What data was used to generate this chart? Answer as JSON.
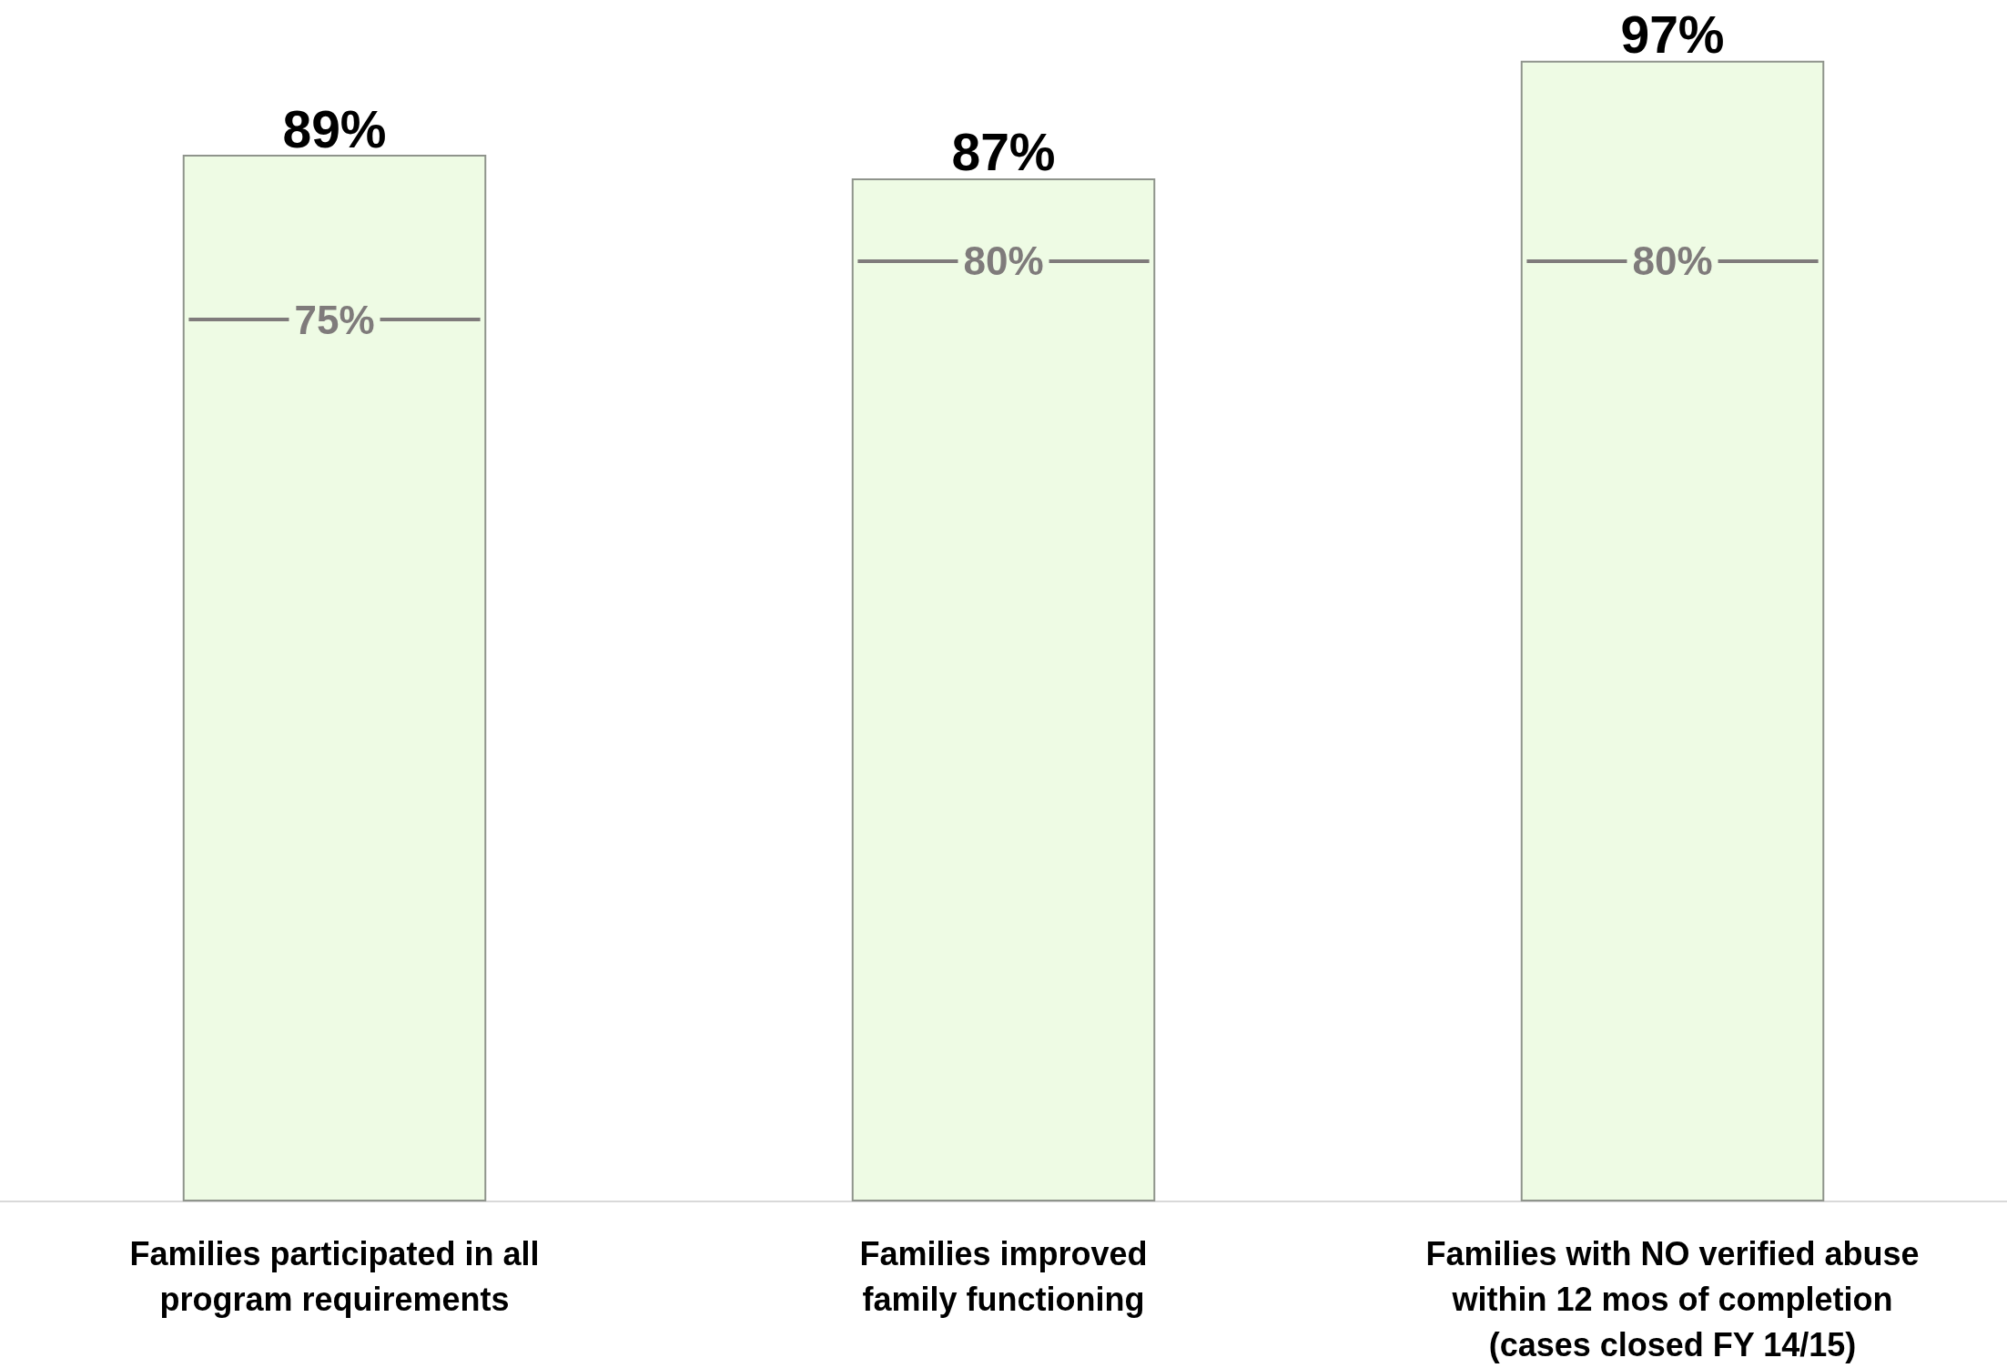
{
  "chart_data": {
    "type": "bar",
    "categories": [
      "Families participated in all\nprogram requirements",
      "Families improved\nfamily functioning",
      "Families with NO verified abuse\nwithin 12 mos of completion\n(cases closed FY 14/15)"
    ],
    "series": [
      {
        "type": "bar",
        "color": "#eefbe4",
        "values": [
          89,
          87,
          97
        ],
        "value_labels": [
          "89%",
          "87%",
          "97%"
        ]
      }
    ],
    "ref_lines": [
      {
        "axis": "y",
        "value": 75,
        "label": "75%",
        "color": "#7f7b7b"
      },
      {
        "axis": "y",
        "value": 80,
        "label": "80%",
        "color": "#7f7b7b"
      },
      {
        "axis": "y",
        "value": 80,
        "label": "80%",
        "color": "#7f7b7b"
      }
    ],
    "tick_labels": "x",
    "grid": false
  }
}
